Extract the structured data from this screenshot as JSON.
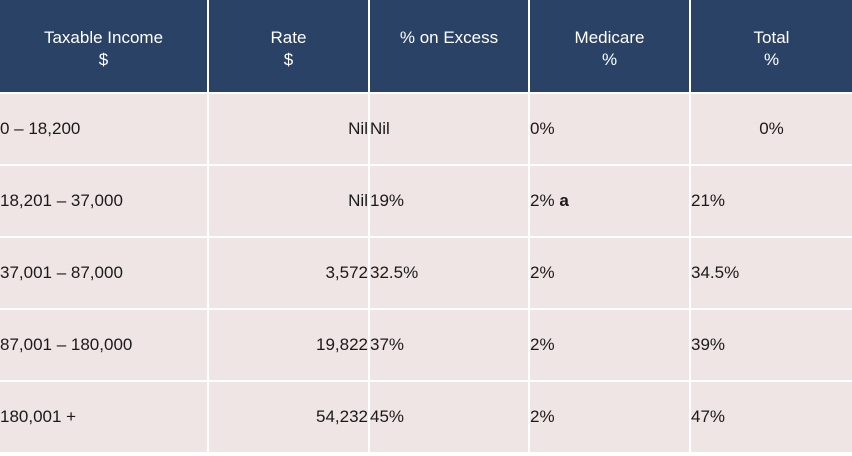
{
  "headers": {
    "income": [
      "Taxable Income",
      "$"
    ],
    "rate": [
      "Rate",
      "$"
    ],
    "excess": [
      "% on Excess"
    ],
    "medicare": [
      "Medicare",
      "%"
    ],
    "total": [
      "Total",
      "%"
    ]
  },
  "rows": [
    {
      "income": "0 – 18,200",
      "rate": "Nil",
      "excess": "Nil",
      "medicare": "0%",
      "medicare_note": "",
      "total": "0%"
    },
    {
      "income": "18,201 – 37,000",
      "rate": "Nil",
      "excess": "19%",
      "medicare": "2%",
      "medicare_note": "a",
      "total": "21%"
    },
    {
      "income": "37,001 – 87,000",
      "rate": "3,572",
      "excess": "32.5%",
      "medicare": "2%",
      "medicare_note": "",
      "total": "34.5%"
    },
    {
      "income": "87,001 – 180,000",
      "rate": "19,822",
      "excess": "37%",
      "medicare": "2%",
      "medicare_note": "",
      "total": "39%"
    },
    {
      "income": "180,001 +",
      "rate": "54,232",
      "excess": "45%",
      "medicare": "2%",
      "medicare_note": "",
      "total": "47%"
    }
  ],
  "colors": {
    "header_bg": "#2a4266",
    "header_text": "#ffffff",
    "cell_bg": "#efe5e4",
    "cell_text": "#1a1a1a",
    "grid_lines": "#ffffff"
  }
}
